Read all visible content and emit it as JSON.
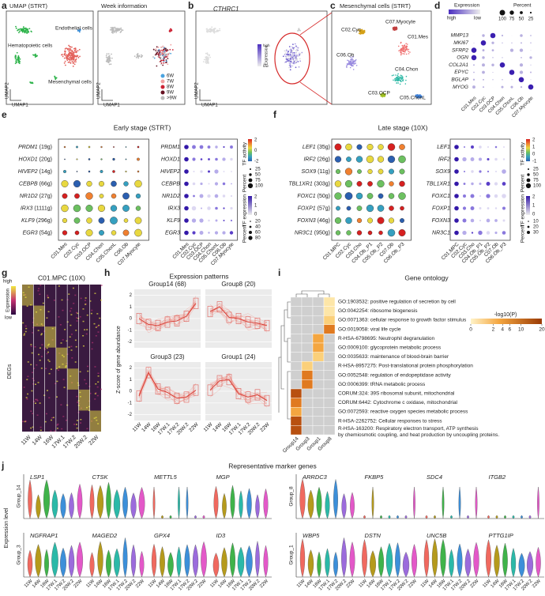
{
  "a": {
    "letter": "a",
    "titles": [
      "UMAP (STRT)",
      "Week information"
    ],
    "clusters": [
      "Endothelial cells",
      "Hematopoietic cells",
      "Mesenchymal cells"
    ],
    "axes": [
      "UMAP1",
      "UMAP2"
    ],
    "weeks": [
      "6W",
      "7W",
      "8W",
      "9W",
      ">9W"
    ]
  },
  "b": {
    "letter": "b",
    "title": "CTHRC1",
    "legend": [
      "Expression",
      "high",
      "low"
    ]
  },
  "c": {
    "letter": "c",
    "title": "Mesenchymal cells (STRT)",
    "clusters": [
      "C02.Cyc",
      "C07.Myocyte",
      "C01.Mes",
      "C06.Ob",
      "C04.Chon",
      "C03.OCP",
      "C05.ChonL"
    ]
  },
  "d": {
    "letter": "d",
    "legend_titles": [
      "Expression",
      "Percent"
    ],
    "high": "high",
    "low": "low",
    "percent_ticks": [
      100,
      75,
      50,
      25
    ],
    "genes": [
      "MMP13",
      "MKI67",
      "SFRP2",
      "OGN",
      "COL2A1",
      "EPYC",
      "BGLAP",
      "MYOG"
    ],
    "clusters": [
      "C01.Mes",
      "C02.Cyc",
      "C03.OCP",
      "C04.Chon",
      "C05.ChonL",
      "C06.Ob",
      "C07.Myocyte"
    ]
  },
  "e": {
    "letter": "e",
    "title": "Early stage (STRT)",
    "genes": [
      "PRDM1",
      "HOXD1",
      "HIVEP2",
      "CEBPB",
      "NR1D2",
      "IRX3",
      "KLF9",
      "EGR3"
    ],
    "counts": [
      "(19g)",
      "(20g)",
      "(14g)",
      "(66g)",
      "(27g)",
      "(1111g)",
      "(296g)",
      "(54g)"
    ],
    "clusters": [
      "C01.Mes",
      "C02.Cyc",
      "C03.OCP",
      "C04.Chon",
      "C05.ChonL",
      "C06.Ob",
      "C07.Myocyte"
    ],
    "legend": {
      "activity": "TF activity",
      "activity_ticks": [
        2,
        0,
        -2
      ],
      "percent": "Percent",
      "percent_ticks": [
        25,
        50,
        75,
        100
      ],
      "expression": "TF expression",
      "expression_ticks": [
        2,
        1,
        0
      ],
      "percent2_ticks": [
        20,
        40,
        60,
        80
      ]
    }
  },
  "f": {
    "letter": "f",
    "title": "Late stage (10X)",
    "genes": [
      "LEF1",
      "IRF2",
      "SOX9",
      "TBL1XR1",
      "FOXC1",
      "FOXP1",
      "FOXN3",
      "NR3C1"
    ],
    "counts": [
      "(35g)",
      "(26g)",
      "(11g)",
      "(303g)",
      "(50g)",
      "(57g)",
      "(46g)",
      "(950g)"
    ],
    "clusters": [
      "C01.MPC",
      "C02.Cyc",
      "C03.Cho",
      "C04.Ob_P1",
      "C05.Ob_P2",
      "C07.Ob",
      "C06.Ob_P3"
    ],
    "legend": {
      "activity": "TF activity",
      "activity_ticks": [
        2,
        1,
        0,
        -1
      ],
      "percent": "Percent",
      "percent_ticks": [
        25,
        50,
        75,
        100
      ],
      "expression": "TF expression",
      "expression_ticks": [
        2,
        1,
        0
      ],
      "percent2_ticks": [
        10,
        20,
        30
      ]
    }
  },
  "g": {
    "letter": "g",
    "title": "C01.MPC (10X)",
    "high": "high",
    "low": "low",
    "legend": "Expression",
    "ylabel": "DEGs"
  },
  "weeks": [
    "11W",
    "14W",
    "16W",
    "17W.1",
    "17W.2",
    "20W.2",
    "22W"
  ],
  "h": {
    "letter": "h",
    "title": "Expression patterns",
    "ylabel": "Z-score of gene abundance",
    "groups": [
      "Group14 (68)",
      "Group8 (20)",
      "Group3 (23)",
      "Group1 (24)"
    ],
    "yticks": [
      2,
      1,
      0,
      -1,
      -2
    ]
  },
  "i": {
    "letter": "i",
    "title": "Gene ontology",
    "legend": "-log10(P)",
    "ticks": [
      0,
      2,
      4,
      6,
      10,
      20
    ],
    "groups": [
      "Group14",
      "Group3",
      "Group1",
      "Group8"
    ],
    "terms": [
      "GO:1903532: positive regulation of secretion by cell",
      "GO:0042254: ribosome biogenesis",
      "GO:0071363: cellular response to growth factor stimulus",
      "GO:0019058: viral life cycle",
      "R-HSA-6798695: Neutrophil degranulation",
      "GO:0009100: glycoprotein metabolic process",
      "GO:0035633: maintenance of blood-brain barrier",
      "R-HSA-8957275: Post-translational protein phosphorylation",
      "GO:0052548: regulation of endopeptidase activity",
      "GO:0006399: tRNA metabolic process",
      "CORUM:324: 39S ribosomal subunit, mitochondrial",
      "CORUM:6442: Cytochrome c oxidase, mitochondrial",
      "GO:0072593: reactive oxygen species metabolic process",
      "R-HSA-2262752: Cellular responses to stress",
      [
        "R-HSA-163200: Respiratory electron transport, ATP synthesis",
        "by chemiosmotic coupling, and heat production by uncoupling proteins."
      ]
    ]
  },
  "j": {
    "letter": "j",
    "title": "Representative marker genes",
    "ylabel": "Expression level",
    "rows": [
      {
        "label": "Group_14",
        "genes": [
          "LSP1",
          "CTSK",
          "METTL5",
          "MGP"
        ]
      },
      {
        "label": "Group_3",
        "genes": [
          "NGFRAP1",
          "MAGED2",
          "GPX4",
          "ID3"
        ]
      },
      {
        "label": "Group_8",
        "genes": [
          "ARRDC3",
          "FKBP5",
          "SDC4",
          "ITGB2"
        ]
      },
      {
        "label": "Group_1",
        "genes": [
          "WBP5",
          "DSTN",
          "UNC5B",
          "PTTG1IP"
        ]
      }
    ]
  }
}
